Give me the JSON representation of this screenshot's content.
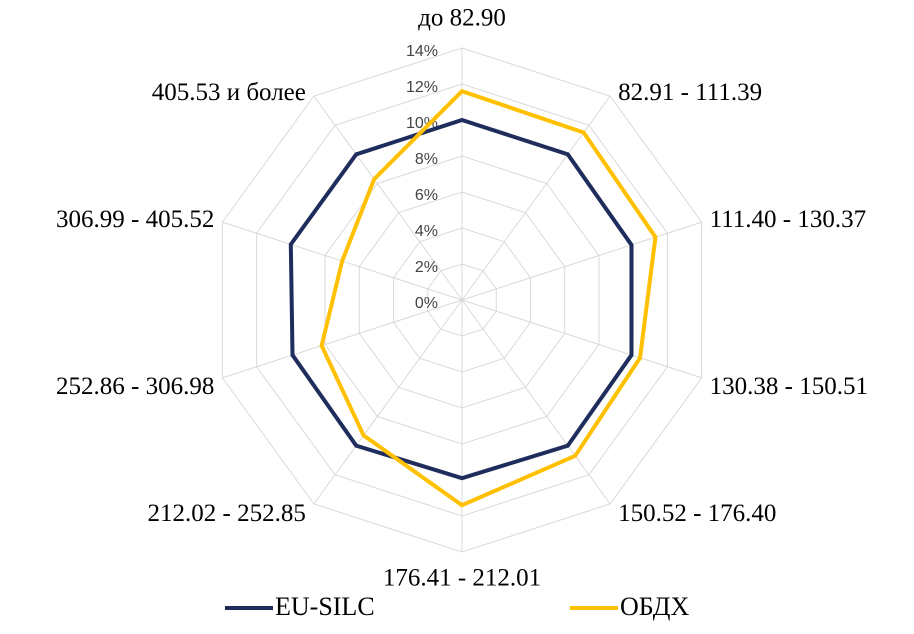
{
  "chart_data": {
    "type": "radar",
    "categories": [
      "до 82.90",
      "82.91 - 111.39",
      "111.40 - 130.37",
      "130.38 - 150.51",
      "150.52 - 176.40",
      "176.41 - 212.01",
      "212.02 - 252.85",
      "252.86 - 306.98",
      "306.99 - 405.52",
      "405.53  и более"
    ],
    "series": [
      {
        "name": "EU-SILC",
        "color": "#1f2d5c",
        "values": [
          10,
          10,
          9.9,
          9.9,
          10,
          9.9,
          10,
          9.9,
          10,
          10
        ]
      },
      {
        "name": "ОБДХ",
        "color": "#ffc000",
        "values": [
          11.6,
          11.5,
          11.3,
          10.4,
          10.7,
          11.4,
          9.3,
          8.2,
          7.0,
          8.3
        ]
      }
    ],
    "ylim": [
      0,
      14
    ],
    "yticks": [
      {
        "value": 0,
        "label": "0%"
      },
      {
        "value": 2,
        "label": "2%"
      },
      {
        "value": 4,
        "label": "4%"
      },
      {
        "value": 6,
        "label": "6%"
      },
      {
        "value": 8,
        "label": "8%"
      },
      {
        "value": 10,
        "label": "10%"
      },
      {
        "value": 12,
        "label": "12%"
      },
      {
        "value": 14,
        "label": "14%"
      }
    ],
    "grid": true,
    "legend": "bottom"
  }
}
